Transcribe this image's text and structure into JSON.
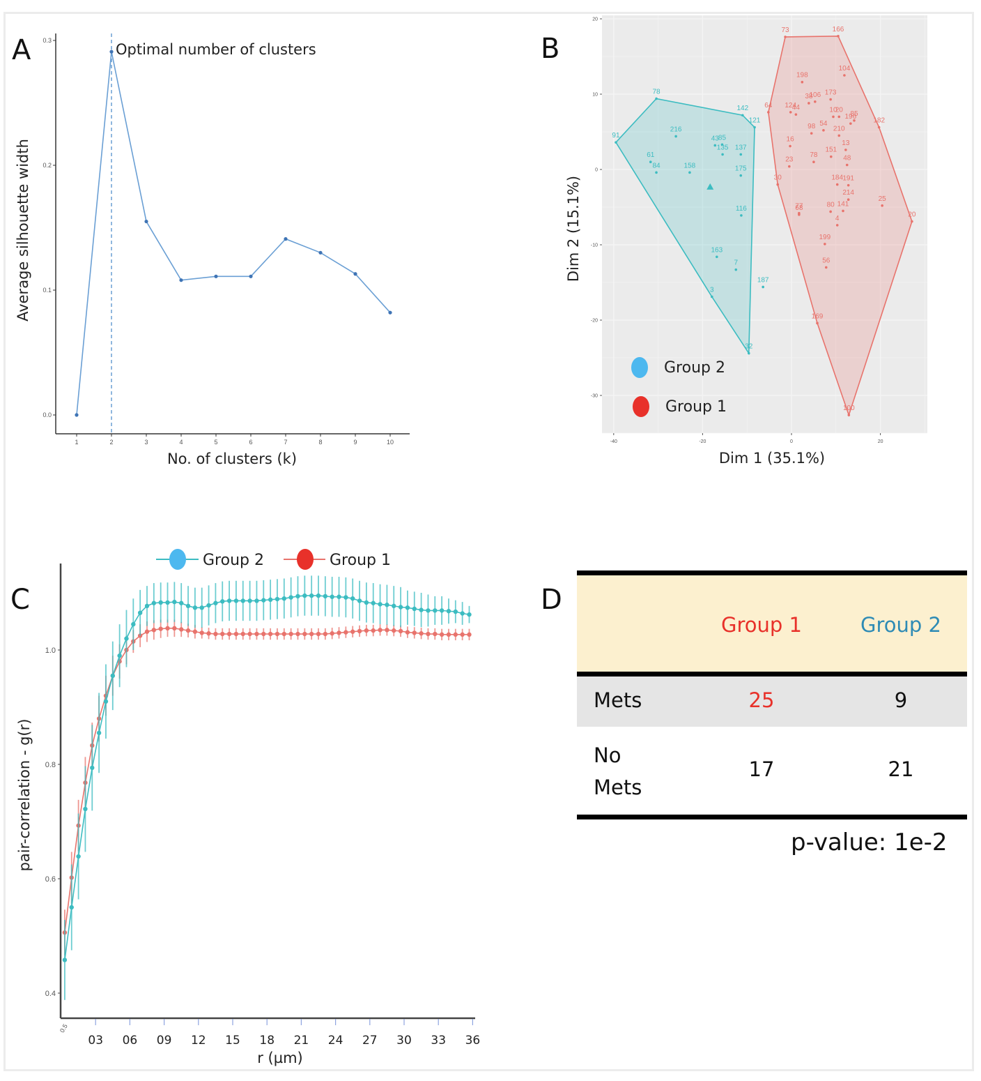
{
  "panels": {
    "A": {
      "letter": "A"
    },
    "B": {
      "letter": "B"
    },
    "C": {
      "letter": "C"
    },
    "D": {
      "letter": "D"
    }
  },
  "colors": {
    "silhouette_line": "#6a9fd4",
    "group1": "#e8736c",
    "group2": "#3cbcc1",
    "group1_text": "#e8312a",
    "group2_text": "#2e8bb5",
    "legend_group1_dot": "#e8312a",
    "legend_group2_dot": "#4db8ef",
    "pca_bg": "#ebebeb",
    "table_header_bg": "#fcf0cf",
    "table_mets_bg": "#e5e5e5"
  },
  "chart_data": [
    {
      "id": "A",
      "type": "line",
      "title": "",
      "xlabel": "No. of clusters (k)",
      "ylabel": "Average silhouette width",
      "x": [
        1,
        2,
        3,
        4,
        5,
        6,
        7,
        8,
        9,
        10
      ],
      "values": [
        0.0,
        0.291,
        0.155,
        0.108,
        0.111,
        0.111,
        0.141,
        0.13,
        0.113,
        0.082
      ],
      "xticks": [
        "1",
        "2",
        "3",
        "4",
        "5",
        "6",
        "7",
        "8",
        "9",
        "10"
      ],
      "yticks": [
        "0.0",
        "0.1",
        "0.2",
        "0.3"
      ],
      "ylim": [
        -0.015,
        0.305
      ],
      "vline_x": 2,
      "annotation": "Optimal number of clusters",
      "grid": false
    },
    {
      "id": "B",
      "type": "scatter",
      "title": "",
      "xlabel": "Dim 1 (35.1%)",
      "ylabel": "Dim 2 (15.1%)",
      "xlim": [
        -42,
        30
      ],
      "ylim": [
        -35,
        20.5
      ],
      "xticks": [
        "-40",
        "-20",
        "0",
        "20"
      ],
      "xtick_values": [
        -40,
        -20,
        0,
        20
      ],
      "yticks": [
        "20",
        "10",
        "0",
        "-10",
        "-20",
        "-30"
      ],
      "ytick_values": [
        20,
        10,
        0,
        -10,
        -20,
        -30
      ],
      "grid": true,
      "legend": {
        "position": "bottom-left",
        "entries": [
          "Group 2",
          "Group 1"
        ]
      },
      "series": [
        {
          "name": "Group 2",
          "centroid": [
            -18.3,
            -2.3
          ],
          "hull": [
            "91",
            "78",
            "142",
            "121",
            "32",
            "3"
          ],
          "points": [
            {
              "label": "78",
              "x": -30.4,
              "y": 9.4
            },
            {
              "label": "142",
              "x": -11.0,
              "y": 7.2
            },
            {
              "label": "121",
              "x": -8.3,
              "y": 5.6
            },
            {
              "label": "91",
              "x": -39.5,
              "y": 3.6
            },
            {
              "label": "216",
              "x": -26.0,
              "y": 4.4
            },
            {
              "label": "43",
              "x": -17.2,
              "y": 3.2
            },
            {
              "label": "85",
              "x": -15.6,
              "y": 3.3
            },
            {
              "label": "135",
              "x": -15.5,
              "y": 2.0
            },
            {
              "label": "137",
              "x": -11.4,
              "y": 2.0
            },
            {
              "label": "61",
              "x": -31.7,
              "y": 1.0
            },
            {
              "label": "84",
              "x": -30.4,
              "y": -0.4
            },
            {
              "label": "158",
              "x": -22.9,
              "y": -0.4
            },
            {
              "label": "175",
              "x": -11.4,
              "y": -0.8
            },
            {
              "label": "116",
              "x": -11.3,
              "y": -6.1
            },
            {
              "label": "163",
              "x": -16.8,
              "y": -11.6
            },
            {
              "label": "7",
              "x": -12.5,
              "y": -13.3
            },
            {
              "label": "187",
              "x": -6.4,
              "y": -15.6
            },
            {
              "label": "3",
              "x": -17.9,
              "y": -16.9
            },
            {
              "label": "32",
              "x": -9.6,
              "y": -24.4
            }
          ]
        },
        {
          "name": "Group 1",
          "hull": [
            "73",
            "166",
            "182",
            "20",
            "100",
            "169",
            "30",
            "64"
          ],
          "points": [
            {
              "label": "73",
              "x": -1.4,
              "y": 17.6
            },
            {
              "label": "166",
              "x": 10.5,
              "y": 17.7
            },
            {
              "label": "198",
              "x": 2.4,
              "y": 11.6
            },
            {
              "label": "104",
              "x": 11.9,
              "y": 12.5
            },
            {
              "label": "64",
              "x": -5.2,
              "y": 7.6
            },
            {
              "label": "106",
              "x": 5.3,
              "y": 9.0
            },
            {
              "label": "173",
              "x": 8.8,
              "y": 9.3
            },
            {
              "label": "38",
              "x": 3.9,
              "y": 8.8
            },
            {
              "label": "124",
              "x": -0.2,
              "y": 7.6
            },
            {
              "label": "44",
              "x": 1.0,
              "y": 7.3
            },
            {
              "label": "10",
              "x": 9.4,
              "y": 7.0
            },
            {
              "label": "20",
              "x": 10.7,
              "y": 7.0
            },
            {
              "label": "196",
              "x": 13.3,
              "y": 6.1
            },
            {
              "label": "85",
              "x": 14.1,
              "y": 6.5
            },
            {
              "label": "182",
              "x": 19.7,
              "y": 5.6
            },
            {
              "label": "98",
              "x": 4.5,
              "y": 4.8
            },
            {
              "label": "54",
              "x": 7.2,
              "y": 5.2
            },
            {
              "label": "210",
              "x": 10.7,
              "y": 4.5
            },
            {
              "label": "16",
              "x": -0.3,
              "y": 3.1
            },
            {
              "label": "13",
              "x": 12.2,
              "y": 2.6
            },
            {
              "label": "151",
              "x": 8.9,
              "y": 1.7
            },
            {
              "label": "48",
              "x": 12.5,
              "y": 0.6
            },
            {
              "label": "78",
              "x": 5.0,
              "y": 1.0
            },
            {
              "label": "23",
              "x": -0.5,
              "y": 0.4
            },
            {
              "label": "30",
              "x": -3.1,
              "y": -2.0
            },
            {
              "label": "184",
              "x": 10.3,
              "y": -2.0
            },
            {
              "label": "191",
              "x": 12.8,
              "y": -2.1
            },
            {
              "label": "214",
              "x": 12.8,
              "y": -4.0
            },
            {
              "label": "25",
              "x": 20.4,
              "y": -4.8
            },
            {
              "label": "20",
              "x": 27.1,
              "y": -6.9
            },
            {
              "label": "80",
              "x": 8.8,
              "y": -5.6
            },
            {
              "label": "141",
              "x": 11.6,
              "y": -5.5
            },
            {
              "label": "4",
              "x": 10.3,
              "y": -7.4
            },
            {
              "label": "77",
              "x": 1.7,
              "y": -5.8
            },
            {
              "label": "68",
              "x": 1.7,
              "y": -6.0
            },
            {
              "label": "199",
              "x": 7.5,
              "y": -9.9
            },
            {
              "label": "56",
              "x": 7.8,
              "y": -13.0
            },
            {
              "label": "169",
              "x": 5.8,
              "y": -20.4
            },
            {
              "label": "100",
              "x": 12.9,
              "y": -32.6
            }
          ]
        }
      ]
    },
    {
      "id": "C",
      "type": "line",
      "title": "",
      "xlabel": "r (µm)",
      "ylabel": "pair-correlation - g(r)",
      "xlim": [
        0,
        36
      ],
      "ylim": [
        0.355,
        1.125
      ],
      "xticks": [
        "0.5",
        "03",
        "06",
        "09",
        "12",
        "15",
        "18",
        "21",
        "24",
        "27",
        "30",
        "33",
        "36"
      ],
      "xtick_values": [
        0.5,
        3,
        6,
        9,
        12,
        15,
        18,
        21,
        24,
        27,
        30,
        33,
        36
      ],
      "yticks": [
        "0.4",
        "0.6",
        "0.8",
        "1.0"
      ],
      "ytick_values": [
        0.4,
        0.6,
        0.8,
        1.0
      ],
      "grid": false,
      "legend": {
        "position": "top",
        "entries": [
          "Group 2",
          "Group 1"
        ]
      },
      "x_start": 0.3,
      "x_step": 0.6,
      "series": [
        {
          "name": "Group 2",
          "values": [
            0.458,
            0.55,
            0.639,
            0.722,
            0.794,
            0.855,
            0.91,
            0.955,
            0.99,
            1.02,
            1.045,
            1.065,
            1.077,
            1.082,
            1.083,
            1.083,
            1.084,
            1.082,
            1.077,
            1.074,
            1.074,
            1.078,
            1.082,
            1.085,
            1.086,
            1.086,
            1.086,
            1.086,
            1.086,
            1.087,
            1.088,
            1.089,
            1.09,
            1.092,
            1.094,
            1.095,
            1.095,
            1.095,
            1.094,
            1.093,
            1.093,
            1.092,
            1.09,
            1.086,
            1.083,
            1.082,
            1.08,
            1.079,
            1.077,
            1.075,
            1.074,
            1.072,
            1.07,
            1.069,
            1.069,
            1.069,
            1.068,
            1.067,
            1.064,
            1.062
          ],
          "error": [
            0.07,
            0.075,
            0.075,
            0.075,
            0.075,
            0.07,
            0.065,
            0.06,
            0.055,
            0.05,
            0.045,
            0.04,
            0.035,
            0.035,
            0.035,
            0.035,
            0.035,
            0.035,
            0.035,
            0.035,
            0.035,
            0.035,
            0.035,
            0.035,
            0.035,
            0.035,
            0.035,
            0.035,
            0.035,
            0.035,
            0.035,
            0.035,
            0.035,
            0.035,
            0.035,
            0.035,
            0.035,
            0.035,
            0.035,
            0.035,
            0.035,
            0.035,
            0.035,
            0.035,
            0.035,
            0.035,
            0.035,
            0.035,
            0.035,
            0.035,
            0.03,
            0.03,
            0.03,
            0.028,
            0.025,
            0.025,
            0.022,
            0.02,
            0.02,
            0.015
          ]
        },
        {
          "name": "Group 1",
          "values": [
            0.506,
            0.602,
            0.693,
            0.768,
            0.833,
            0.88,
            0.92,
            0.955,
            0.98,
            1.0,
            1.015,
            1.025,
            1.032,
            1.035,
            1.037,
            1.038,
            1.038,
            1.036,
            1.034,
            1.032,
            1.03,
            1.029,
            1.028,
            1.028,
            1.028,
            1.028,
            1.028,
            1.028,
            1.028,
            1.028,
            1.028,
            1.028,
            1.028,
            1.028,
            1.028,
            1.028,
            1.028,
            1.028,
            1.028,
            1.029,
            1.03,
            1.031,
            1.032,
            1.033,
            1.034,
            1.034,
            1.035,
            1.035,
            1.034,
            1.033,
            1.031,
            1.03,
            1.029,
            1.028,
            1.028,
            1.027,
            1.027,
            1.027,
            1.027,
            1.027
          ],
          "error": [
            0.04,
            0.045,
            0.045,
            0.045,
            0.04,
            0.04,
            0.035,
            0.035,
            0.03,
            0.025,
            0.02,
            0.02,
            0.018,
            0.017,
            0.016,
            0.015,
            0.015,
            0.013,
            0.012,
            0.012,
            0.01,
            0.01,
            0.01,
            0.01,
            0.01,
            0.01,
            0.01,
            0.01,
            0.01,
            0.01,
            0.01,
            0.01,
            0.01,
            0.01,
            0.01,
            0.01,
            0.01,
            0.01,
            0.01,
            0.01,
            0.01,
            0.01,
            0.01,
            0.01,
            0.01,
            0.01,
            0.01,
            0.01,
            0.01,
            0.01,
            0.01,
            0.01,
            0.01,
            0.01,
            0.01,
            0.01,
            0.01,
            0.01,
            0.01,
            0.01
          ]
        }
      ]
    },
    {
      "id": "D",
      "type": "table",
      "columns": [
        "",
        "Group 1",
        "Group 2"
      ],
      "rows": [
        {
          "label": "Mets",
          "group1": "25",
          "group2": "9"
        },
        {
          "label_line1": "No",
          "label_line2": "Mets",
          "group1": "17",
          "group2": "21"
        }
      ],
      "footnote": "p-value:  1e-2"
    }
  ]
}
